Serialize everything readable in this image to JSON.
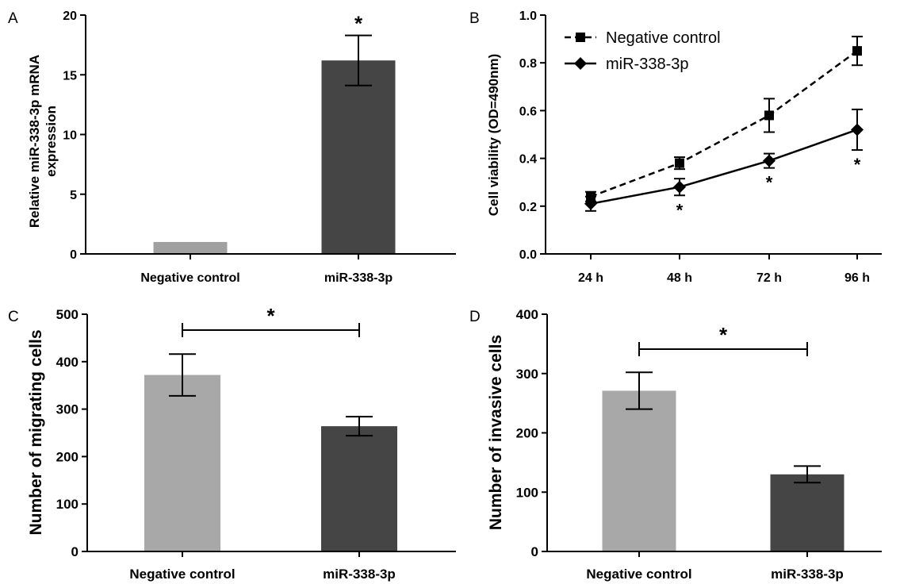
{
  "panel_labels": [
    "A",
    "B",
    "C",
    "D"
  ],
  "significance_marker": "*",
  "chart_data": [
    {
      "panel": "A",
      "type": "bar",
      "categories": [
        "Negative control",
        "miR-338-3p"
      ],
      "values": [
        1.0,
        16.2
      ],
      "errors": [
        0,
        2.1
      ],
      "colors": [
        "#a0a0a0",
        "#454545"
      ],
      "ylabel": "Relative miR-338-3p mRNA expression",
      "ylabel_lines": [
        "Relative miR-338-3p mRNA",
        "expression"
      ],
      "ylim": [
        0,
        20
      ],
      "yticks": [
        0,
        5,
        10,
        15,
        20
      ],
      "ytick_labels": [
        "0",
        "5",
        "10",
        "15",
        "20"
      ],
      "significance": [
        {
          "category": "miR-338-3p",
          "label": "*"
        }
      ]
    },
    {
      "panel": "B",
      "type": "line",
      "x": [
        "24 h",
        "48 h",
        "72 h",
        "96 h"
      ],
      "ylabel": "Cell viability (OD=490nm)",
      "ylim": [
        0,
        1.0
      ],
      "yticks": [
        0,
        0.2,
        0.4,
        0.6,
        0.8,
        1.0
      ],
      "ytick_labels": [
        "0.0",
        "0.2",
        "0.4",
        "0.6",
        "0.8",
        "1.0"
      ],
      "legend_position": "top-left",
      "series": [
        {
          "name": "Negative control",
          "values": [
            0.24,
            0.38,
            0.58,
            0.85
          ],
          "errors": [
            0.02,
            0.025,
            0.07,
            0.06
          ],
          "marker": "square",
          "line": "dashed"
        },
        {
          "name": "miR-338-3p",
          "values": [
            0.21,
            0.28,
            0.39,
            0.52
          ],
          "errors": [
            0.03,
            0.035,
            0.03,
            0.085
          ],
          "marker": "diamond",
          "line": "solid"
        }
      ],
      "significance": [
        {
          "x": "48 h",
          "label": "*"
        },
        {
          "x": "72 h",
          "label": "*"
        },
        {
          "x": "96 h",
          "label": "*"
        }
      ]
    },
    {
      "panel": "C",
      "type": "bar",
      "categories": [
        "Negative control",
        "miR-338-3p"
      ],
      "values": [
        372,
        264
      ],
      "errors": [
        44,
        20
      ],
      "colors": [
        "#a8a8a8",
        "#454545"
      ],
      "ylabel": "Number of migrating cells",
      "ylim": [
        0,
        500
      ],
      "yticks": [
        0,
        100,
        200,
        300,
        400,
        500
      ],
      "ytick_labels": [
        "0",
        "100",
        "200",
        "300",
        "400",
        "500"
      ],
      "significance": [
        {
          "between": [
            "Negative control",
            "miR-338-3p"
          ],
          "label": "*"
        }
      ]
    },
    {
      "panel": "D",
      "type": "bar",
      "categories": [
        "Negative control",
        "miR-338-3p"
      ],
      "values": [
        271,
        130
      ],
      "errors": [
        31,
        14
      ],
      "colors": [
        "#a8a8a8",
        "#454545"
      ],
      "ylabel": "Number of invasive cells",
      "ylim": [
        0,
        400
      ],
      "yticks": [
        0,
        100,
        200,
        300,
        400
      ],
      "ytick_labels": [
        "0",
        "100",
        "200",
        "300",
        "400"
      ],
      "significance": [
        {
          "between": [
            "Negative control",
            "miR-338-3p"
          ],
          "label": "*"
        }
      ]
    }
  ]
}
